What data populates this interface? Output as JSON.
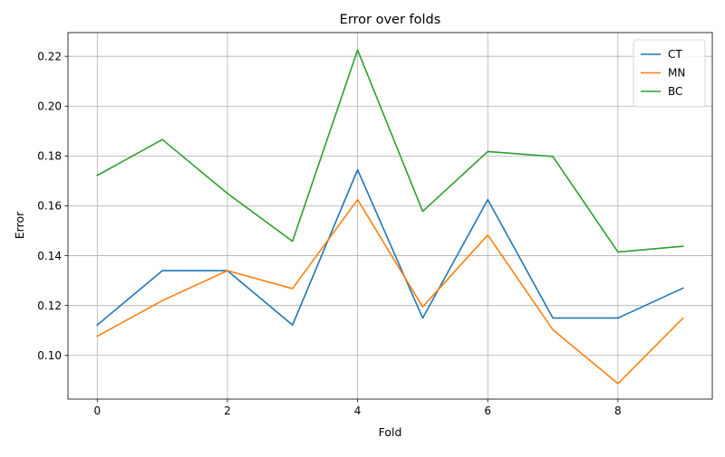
{
  "chart_data": {
    "type": "line",
    "title": "Error over folds",
    "xlabel": "Fold",
    "ylabel": "Error",
    "x": [
      0,
      1,
      2,
      3,
      4,
      5,
      6,
      7,
      8,
      9
    ],
    "xlim": [
      -0.45,
      9.45
    ],
    "ylim": [
      0.0825,
      0.2295
    ],
    "xticks": [
      0,
      2,
      4,
      6,
      8
    ],
    "xtick_labels": [
      "0",
      "2",
      "4",
      "6",
      "8"
    ],
    "yticks": [
      0.1,
      0.12,
      0.14,
      0.16,
      0.18,
      0.2,
      0.22
    ],
    "ytick_labels": [
      "0.10",
      "0.12",
      "0.14",
      "0.16",
      "0.18",
      "0.20",
      "0.22"
    ],
    "grid": true,
    "legend_position": "top-right",
    "series": [
      {
        "name": "CT",
        "color": "#1f77b4",
        "values": [
          0.1122,
          0.134,
          0.134,
          0.1122,
          0.1745,
          0.115,
          0.1625,
          0.115,
          0.115,
          0.127
        ]
      },
      {
        "name": "MN",
        "color": "#ff7f0e",
        "values": [
          0.1077,
          0.122,
          0.134,
          0.1268,
          0.1625,
          0.1195,
          0.1483,
          0.1103,
          0.0887,
          0.115
        ]
      },
      {
        "name": "BC",
        "color": "#2ca02c",
        "values": [
          0.1722,
          0.1866,
          0.165,
          0.1458,
          0.2225,
          0.1578,
          0.1818,
          0.1798,
          0.1415,
          0.1438
        ]
      }
    ]
  }
}
